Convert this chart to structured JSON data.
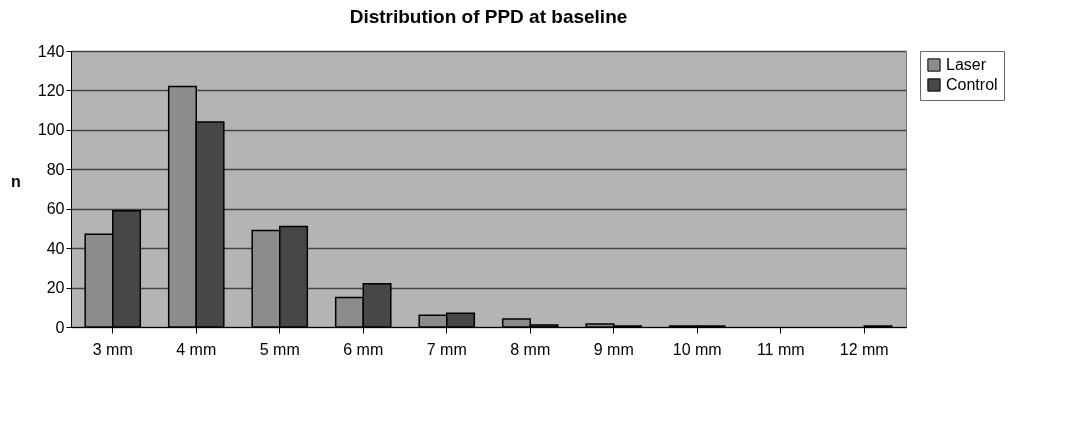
{
  "chart_data": {
    "type": "bar",
    "title": "Distribution of PPD at baseline",
    "ylabel": "n",
    "categories": [
      "3 mm",
      "4 mm",
      "5 mm",
      "6 mm",
      "7 mm",
      "8 mm",
      "9 mm",
      "10 mm",
      "11 mm",
      "12 mm"
    ],
    "series": [
      {
        "name": "Laser",
        "color": "#8c8c8c",
        "values": [
          47,
          122,
          49,
          15,
          6,
          4,
          1.5,
          0.5,
          null,
          null
        ]
      },
      {
        "name": "Control",
        "color": "#474747",
        "values": [
          59,
          104,
          51,
          22,
          7,
          1,
          0.5,
          0.5,
          null,
          0.5
        ]
      }
    ],
    "ylim": [
      0,
      140
    ],
    "yticks": [
      0,
      20,
      40,
      60,
      80,
      100,
      120,
      140
    ],
    "grid": "y",
    "legend": "right"
  }
}
